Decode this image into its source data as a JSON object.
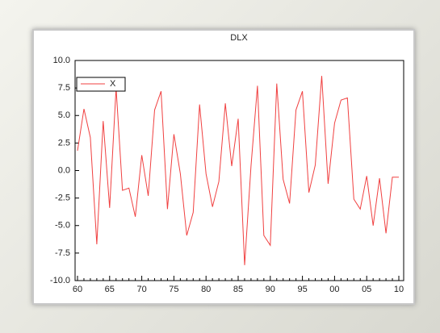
{
  "chart_data": {
    "type": "line",
    "title": "DLX",
    "categories": [
      "60",
      null,
      null,
      null,
      null,
      "65",
      null,
      null,
      null,
      null,
      "70",
      null,
      null,
      null,
      null,
      "75",
      null,
      null,
      null,
      null,
      "80",
      null,
      null,
      null,
      null,
      "85",
      null,
      null,
      null,
      null,
      "90",
      null,
      null,
      null,
      null,
      "95",
      null,
      null,
      null,
      null,
      "00",
      null,
      null,
      null,
      null,
      "05",
      null,
      null,
      null,
      null,
      "10"
    ],
    "series": [
      {
        "name": "X",
        "color": "#f04040",
        "values": [
          1.8,
          5.6,
          3.0,
          -6.7,
          4.5,
          -3.4,
          7.5,
          -1.8,
          -1.6,
          -4.2,
          1.4,
          -2.3,
          5.5,
          7.2,
          -3.5,
          3.3,
          -0.3,
          -5.9,
          -3.8,
          6.0,
          -0.3,
          -3.3,
          -1.0,
          6.1,
          0.4,
          4.7,
          -8.6,
          0.4,
          7.7,
          -5.9,
          -6.8,
          7.9,
          -0.8,
          -3.0,
          5.5,
          7.2,
          -2.0,
          0.5,
          8.6,
          -1.2,
          4.3,
          6.4,
          6.6,
          -2.6,
          -3.5,
          -0.5,
          -5.0,
          -0.7,
          -5.7,
          -0.6,
          -0.6
        ]
      }
    ],
    "ylim": [
      -10,
      10
    ],
    "yticks": [
      {
        "value": -10,
        "label": "-10.0"
      },
      -7.5,
      {
        "value": -5,
        "label": "-5.0"
      },
      -2.5,
      {
        "value": 0,
        "label": "0.0"
      },
      2.5,
      {
        "value": 5,
        "label": "5.0"
      },
      7.5,
      {
        "value": 10,
        "label": "10.0"
      }
    ],
    "legend": "upper left"
  }
}
